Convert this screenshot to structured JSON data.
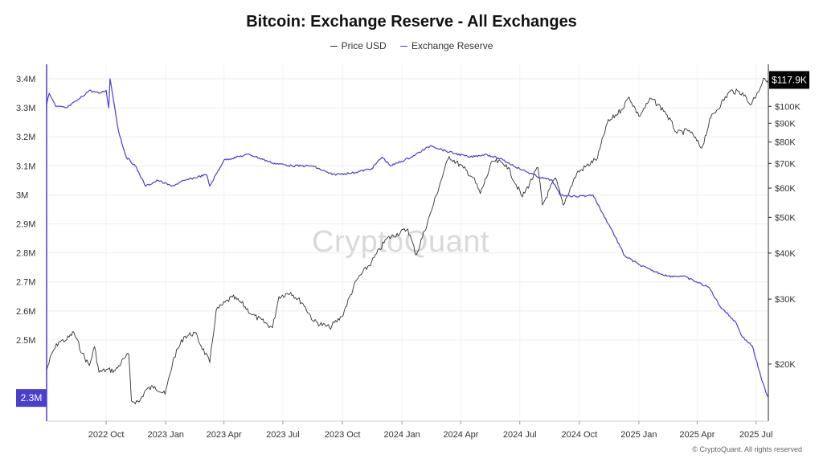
{
  "title": "Bitcoin: Exchange Reserve - All Exchanges",
  "legend": {
    "price_label": "Price USD",
    "reserve_label": "Exchange Reserve"
  },
  "colors": {
    "price": "#333333",
    "reserve": "#4a3fcf",
    "badge_price_bg": "#000000",
    "badge_reserve_bg": "#4a3fcf"
  },
  "badges": {
    "price": "$117.9K",
    "reserve": "2.3M"
  },
  "watermark": "CryptoQuant",
  "copyright": "© CryptoQuant. All rights reserved",
  "chart_data": {
    "type": "line",
    "title": "Bitcoin: Exchange Reserve - All Exchanges",
    "x_range": [
      "2022-07-01",
      "2025-07-20"
    ],
    "x_ticks": [
      {
        "date": "2022-10-01",
        "label": "2022 Oct"
      },
      {
        "date": "2023-01-01",
        "label": "2023 Jan"
      },
      {
        "date": "2023-04-01",
        "label": "2023 Apr"
      },
      {
        "date": "2023-07-01",
        "label": "2023 Jul"
      },
      {
        "date": "2023-10-01",
        "label": "2023 Oct"
      },
      {
        "date": "2024-01-01",
        "label": "2024 Jan"
      },
      {
        "date": "2024-04-01",
        "label": "2024 Apr"
      },
      {
        "date": "2024-07-01",
        "label": "2024 Jul"
      },
      {
        "date": "2024-10-01",
        "label": "2024 Oct"
      },
      {
        "date": "2025-01-01",
        "label": "2025 Jan"
      },
      {
        "date": "2025-04-01",
        "label": "2025 Apr"
      },
      {
        "date": "2025-07-01",
        "label": "2025 Jul"
      }
    ],
    "y_left": {
      "ylim": [
        2220000,
        3450000
      ],
      "ticks": [
        {
          "value": 2500000,
          "label": "2.5M"
        },
        {
          "value": 2600000,
          "label": "2.6M"
        },
        {
          "value": 2700000,
          "label": "2.7M"
        },
        {
          "value": 2800000,
          "label": "2.8M"
        },
        {
          "value": 2900000,
          "label": "2.9M"
        },
        {
          "value": 3000000,
          "label": "3M"
        },
        {
          "value": 3100000,
          "label": "3.1M"
        },
        {
          "value": 3200000,
          "label": "3.2M"
        },
        {
          "value": 3300000,
          "label": "3.3M"
        },
        {
          "value": 3400000,
          "label": "3.4M"
        }
      ]
    },
    "y_right": {
      "scale": "log",
      "ylim": [
        14000,
        130000
      ],
      "ticks": [
        {
          "value": 20000,
          "label": "$20K"
        },
        {
          "value": 30000,
          "label": "$30K"
        },
        {
          "value": 40000,
          "label": "$40K"
        },
        {
          "value": 50000,
          "label": "$50K"
        },
        {
          "value": 60000,
          "label": "$60K"
        },
        {
          "value": 70000,
          "label": "$70K"
        },
        {
          "value": 80000,
          "label": "$80K"
        },
        {
          "value": 90000,
          "label": "$90K"
        },
        {
          "value": 100000,
          "label": "$100K"
        }
      ]
    },
    "grid": true,
    "legend_position": "top-center",
    "series": [
      {
        "name": "Price USD",
        "axis": "right",
        "points": [
          [
            "2022-07-01",
            19300
          ],
          [
            "2022-07-10",
            21500
          ],
          [
            "2022-07-20",
            23000
          ],
          [
            "2022-08-01",
            23300
          ],
          [
            "2022-08-12",
            24400
          ],
          [
            "2022-08-25",
            21400
          ],
          [
            "2022-09-05",
            19800
          ],
          [
            "2022-09-13",
            22300
          ],
          [
            "2022-09-20",
            19000
          ],
          [
            "2022-10-01",
            19300
          ],
          [
            "2022-10-15",
            19200
          ],
          [
            "2022-10-29",
            20700
          ],
          [
            "2022-11-05",
            21200
          ],
          [
            "2022-11-09",
            15900
          ],
          [
            "2022-11-21",
            15800
          ],
          [
            "2022-12-01",
            17000
          ],
          [
            "2022-12-15",
            17400
          ],
          [
            "2022-12-31",
            16550
          ],
          [
            "2023-01-14",
            20900
          ],
          [
            "2023-01-29",
            23700
          ],
          [
            "2023-02-15",
            24300
          ],
          [
            "2023-03-10",
            20200
          ],
          [
            "2023-03-20",
            28000
          ],
          [
            "2023-04-14",
            30400
          ],
          [
            "2023-04-28",
            29300
          ],
          [
            "2023-05-15",
            27200
          ],
          [
            "2023-06-15",
            25100
          ],
          [
            "2023-06-25",
            30500
          ],
          [
            "2023-07-13",
            31300
          ],
          [
            "2023-08-01",
            29200
          ],
          [
            "2023-08-18",
            26100
          ],
          [
            "2023-09-11",
            25100
          ],
          [
            "2023-09-30",
            26900
          ],
          [
            "2023-10-23",
            33800
          ],
          [
            "2023-11-15",
            37800
          ],
          [
            "2023-12-08",
            43700
          ],
          [
            "2024-01-10",
            46500
          ],
          [
            "2024-01-23",
            39500
          ],
          [
            "2024-02-15",
            51800
          ],
          [
            "2024-03-05",
            66000
          ],
          [
            "2024-03-14",
            73100
          ],
          [
            "2024-04-05",
            68000
          ],
          [
            "2024-04-20",
            64000
          ],
          [
            "2024-05-01",
            58000
          ],
          [
            "2024-05-20",
            71000
          ],
          [
            "2024-06-10",
            69600
          ],
          [
            "2024-07-05",
            56800
          ],
          [
            "2024-07-29",
            68200
          ],
          [
            "2024-08-05",
            54000
          ],
          [
            "2024-08-25",
            64000
          ],
          [
            "2024-09-06",
            54000
          ],
          [
            "2024-09-27",
            65800
          ],
          [
            "2024-10-29",
            72400
          ],
          [
            "2024-11-13",
            90000
          ],
          [
            "2024-12-05",
            98000
          ],
          [
            "2024-12-17",
            106000
          ],
          [
            "2025-01-01",
            94000
          ],
          [
            "2025-01-20",
            105000
          ],
          [
            "2025-02-10",
            97000
          ],
          [
            "2025-03-01",
            84500
          ],
          [
            "2025-03-20",
            86000
          ],
          [
            "2025-04-08",
            77000
          ],
          [
            "2025-04-22",
            93000
          ],
          [
            "2025-05-22",
            110000
          ],
          [
            "2025-06-10",
            109000
          ],
          [
            "2025-06-22",
            101000
          ],
          [
            "2025-07-03",
            109000
          ],
          [
            "2025-07-14",
            119000
          ],
          [
            "2025-07-20",
            117900
          ]
        ]
      },
      {
        "name": "Exchange Reserve",
        "axis": "left",
        "points": [
          [
            "2022-07-01",
            3310000
          ],
          [
            "2022-07-05",
            3350000
          ],
          [
            "2022-07-15",
            3305000
          ],
          [
            "2022-08-01",
            3300000
          ],
          [
            "2022-08-20",
            3330000
          ],
          [
            "2022-09-05",
            3360000
          ],
          [
            "2022-09-20",
            3350000
          ],
          [
            "2022-10-01",
            3360000
          ],
          [
            "2022-10-05",
            3300000
          ],
          [
            "2022-10-07",
            3400000
          ],
          [
            "2022-10-10",
            3360000
          ],
          [
            "2022-10-20",
            3220000
          ],
          [
            "2022-11-01",
            3130000
          ],
          [
            "2022-11-15",
            3100000
          ],
          [
            "2022-12-01",
            3030000
          ],
          [
            "2022-12-20",
            3050000
          ],
          [
            "2023-01-10",
            3030000
          ],
          [
            "2023-01-31",
            3050000
          ],
          [
            "2023-03-05",
            3070000
          ],
          [
            "2023-03-10",
            3030000
          ],
          [
            "2023-04-01",
            3120000
          ],
          [
            "2023-05-10",
            3140000
          ],
          [
            "2023-06-15",
            3110000
          ],
          [
            "2023-07-15",
            3100000
          ],
          [
            "2023-08-15",
            3100000
          ],
          [
            "2023-09-15",
            3070000
          ],
          [
            "2023-10-15",
            3075000
          ],
          [
            "2023-11-15",
            3090000
          ],
          [
            "2023-12-01",
            3130000
          ],
          [
            "2023-12-15",
            3100000
          ],
          [
            "2024-01-15",
            3130000
          ],
          [
            "2024-02-15",
            3170000
          ],
          [
            "2024-03-10",
            3150000
          ],
          [
            "2024-04-15",
            3130000
          ],
          [
            "2024-05-10",
            3140000
          ],
          [
            "2024-06-05",
            3120000
          ],
          [
            "2024-07-01",
            3090000
          ],
          [
            "2024-08-01",
            3060000
          ],
          [
            "2024-08-20",
            3050000
          ],
          [
            "2024-09-01",
            3000000
          ],
          [
            "2024-09-25",
            2995000
          ],
          [
            "2024-10-15",
            2998000
          ],
          [
            "2024-10-22",
            3000000
          ],
          [
            "2024-11-05",
            2940000
          ],
          [
            "2024-11-20",
            2880000
          ],
          [
            "2024-12-10",
            2790000
          ],
          [
            "2025-01-01",
            2760000
          ],
          [
            "2025-01-20",
            2740000
          ],
          [
            "2025-02-15",
            2720000
          ],
          [
            "2025-03-10",
            2720000
          ],
          [
            "2025-03-31",
            2700000
          ],
          [
            "2025-04-20",
            2680000
          ],
          [
            "2025-05-05",
            2620000
          ],
          [
            "2025-05-31",
            2560000
          ],
          [
            "2025-06-10",
            2510000
          ],
          [
            "2025-06-25",
            2480000
          ],
          [
            "2025-07-10",
            2360000
          ],
          [
            "2025-07-20",
            2300000
          ]
        ]
      }
    ]
  }
}
